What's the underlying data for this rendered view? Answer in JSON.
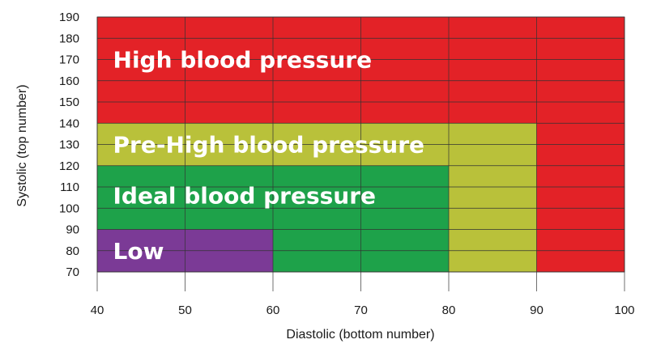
{
  "chart_data": {
    "type": "area",
    "xlabel": "Diastolic (bottom number)",
    "ylabel": "Systolic (top number)",
    "xlim": [
      40,
      100
    ],
    "ylim": [
      70,
      190
    ],
    "x_ticks": [
      40,
      50,
      60,
      70,
      80,
      90,
      100
    ],
    "y_ticks": [
      70,
      80,
      90,
      100,
      110,
      120,
      130,
      140,
      150,
      160,
      170,
      180,
      190
    ],
    "grid": true,
    "regions": [
      {
        "key": "high",
        "label": "High blood pressure",
        "color": "#e32227",
        "x": [
          40,
          100
        ],
        "y": [
          70,
          190
        ],
        "label_at": {
          "x": 41.8,
          "y": 170
        }
      },
      {
        "key": "prehigh",
        "label": "Pre-High blood pressure",
        "color": "#b9c13a",
        "x": [
          40,
          90
        ],
        "y": [
          70,
          140
        ],
        "label_at": {
          "x": 41.8,
          "y": 130
        }
      },
      {
        "key": "ideal",
        "label": "Ideal blood pressure",
        "color": "#1ea24a",
        "x": [
          40,
          80
        ],
        "y": [
          70,
          120
        ],
        "label_at": {
          "x": 41.8,
          "y": 106
        }
      },
      {
        "key": "low",
        "label": "Low",
        "color": "#7b3a96",
        "x": [
          40,
          60
        ],
        "y": [
          70,
          90
        ],
        "label_at": {
          "x": 41.8,
          "y": 80
        }
      }
    ]
  }
}
